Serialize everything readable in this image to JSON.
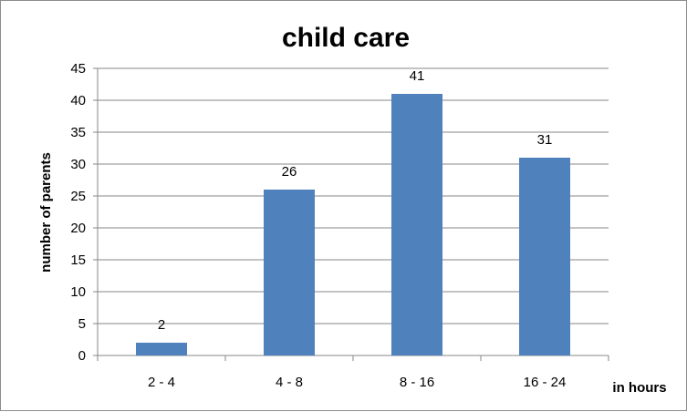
{
  "chart_data": {
    "type": "bar",
    "title": "child care",
    "xlabel": "in hours",
    "ylabel": "number of parents",
    "categories": [
      "2 - 4",
      "4 - 8",
      "8 - 16",
      "16 - 24"
    ],
    "values": [
      2,
      26,
      41,
      31
    ],
    "data_labels": [
      "2",
      "26",
      "41",
      "31"
    ],
    "y_ticks": [
      "0",
      "5",
      "10",
      "15",
      "20",
      "25",
      "30",
      "35",
      "40",
      "45"
    ],
    "ylim": [
      0,
      45
    ],
    "grid": true,
    "legend": "none",
    "bar_color": "#4f81bd",
    "grid_color": "#878787"
  }
}
